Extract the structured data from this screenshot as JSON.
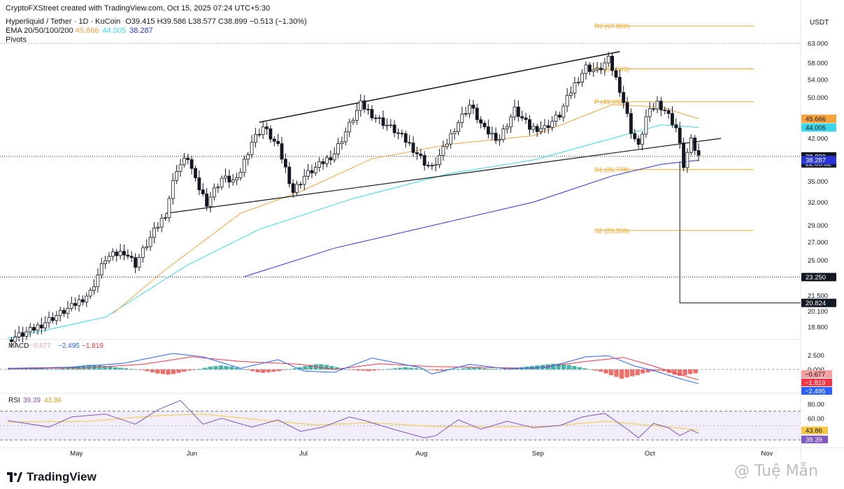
{
  "header": {
    "attribution": "CryptoFXStreet created with TradingView.com, Oct 15, 2025 07:24 UTC+5:30",
    "symbol": "Hyperliquid / Tether · 1D · KuCoin",
    "ohlc": "O39.415 H39.586 L38.577 C38.899 −0.513 (−1.30%)",
    "ema_label": "EMA 20/50/100/200",
    "ema_values": [
      "45.666",
      "44.005",
      "38.287"
    ],
    "pivots_label": "Pivots",
    "currency": "USDT"
  },
  "colors": {
    "up": "#131722",
    "down": "#131722",
    "ema50": "#f7a440",
    "ema100": "#3dd6e8",
    "ema200": "#2a35d6",
    "pivot": "#f5a623",
    "macd": "#2962ff",
    "signal": "#f23645",
    "hist_pos": "#26a69a",
    "hist_neg": "#ef5350",
    "rsi": "#7e57c2",
    "rsi_ma": "#f6c744"
  },
  "chart_data": [
    {
      "type": "candlestick",
      "title": "Hyperliquid / Tether · 1D · KuCoin",
      "price_scale": "log",
      "ylim": [
        17.5,
        70
      ],
      "x_ticks": [
        "May",
        "Jun",
        "Jul",
        "Aug",
        "Sep",
        "Oct",
        "Nov"
      ],
      "y_ticks": [
        "63.000",
        "58.000",
        "54.000",
        "50.000",
        "46.000",
        "42.000",
        "38.899",
        "35.000",
        "32.000",
        "29.000",
        "27.000",
        "25.000",
        "23.250",
        "21.500",
        "20.100",
        "18.800"
      ],
      "price_tags": [
        {
          "value": 45.666,
          "label": "45.666",
          "color": "#f7a440"
        },
        {
          "value": 44.005,
          "label": "44.005",
          "color": "#3dd6e8"
        },
        {
          "value": 38.899,
          "label": "38.899",
          "sub": "22:05:32",
          "color": "#131722"
        },
        {
          "value": 38.287,
          "label": "38.287",
          "color": "#2a35d6"
        },
        {
          "value": 23.25,
          "label": "23.250",
          "color": "#131722"
        },
        {
          "value": 20.824,
          "label": "20.824",
          "color": "#131722"
        }
      ],
      "pivots": [
        {
          "label": "R2 (67.822)",
          "value": 67.822
        },
        {
          "label": "R1 (56.505)",
          "value": 56.505
        },
        {
          "label": "P (49.095)",
          "value": 49.095
        },
        {
          "label": "S1 (36.778)",
          "value": 36.778
        },
        {
          "label": "S2 (28.368)",
          "value": 28.368
        }
      ],
      "channel": {
        "upper": [
          [
            "Jun 20",
            45.0
          ],
          [
            "Sep 24",
            60.8
          ]
        ],
        "lower": [
          [
            "May 26",
            30.5
          ],
          [
            "Oct 21",
            42.0
          ]
        ]
      },
      "anchor_points": [
        [
          "Apr 14",
          17.8
        ],
        [
          "Apr 20",
          18.5
        ],
        [
          "Apr 26",
          19.6
        ],
        [
          "May 1",
          20.5
        ],
        [
          "May 6",
          21.8
        ],
        [
          "May 10",
          25.2
        ],
        [
          "May 15",
          26.0
        ],
        [
          "May 18",
          24.6
        ],
        [
          "May 22",
          27.5
        ],
        [
          "May 26",
          30.5
        ],
        [
          "May 29",
          37.0
        ],
        [
          "Jun 1",
          38.8
        ],
        [
          "Jun 3",
          35.0
        ],
        [
          "Jun 6",
          32.0
        ],
        [
          "Jun 10",
          35.5
        ],
        [
          "Jun 14",
          35.0
        ],
        [
          "Jun 18",
          41.5
        ],
        [
          "Jun 21",
          44.2
        ],
        [
          "Jun 25",
          40.5
        ],
        [
          "Jun 29",
          33.5
        ],
        [
          "Jul 2",
          35.8
        ],
        [
          "Jul 6",
          37.5
        ],
        [
          "Jul 10",
          39.5
        ],
        [
          "Jul 14",
          44.5
        ],
        [
          "Jul 17",
          48.6
        ],
        [
          "Jul 21",
          46.0
        ],
        [
          "Jul 26",
          43.5
        ],
        [
          "Jul 30",
          41.0
        ],
        [
          "Aug 3",
          38.0
        ],
        [
          "Aug 5",
          37.0
        ],
        [
          "Aug 8",
          40.0
        ],
        [
          "Aug 11",
          44.0
        ],
        [
          "Aug 15",
          48.5
        ],
        [
          "Aug 19",
          43.5
        ],
        [
          "Aug 23",
          42.0
        ],
        [
          "Aug 27",
          47.5
        ],
        [
          "Aug 31",
          44.0
        ],
        [
          "Sep 4",
          44.0
        ],
        [
          "Sep 8",
          46.5
        ],
        [
          "Sep 12",
          53.0
        ],
        [
          "Sep 15",
          57.0
        ],
        [
          "Sep 18",
          56.0
        ],
        [
          "Sep 21",
          58.8
        ],
        [
          "Sep 24",
          52.0
        ],
        [
          "Sep 27",
          43.5
        ],
        [
          "Sep 29",
          40.5
        ],
        [
          "Oct 1",
          46.0
        ],
        [
          "Oct 4",
          49.0
        ],
        [
          "Oct 6",
          47.5
        ],
        [
          "Oct 9",
          44.0
        ],
        [
          "Oct 11",
          37.5
        ],
        [
          "Oct 13",
          41.5
        ],
        [
          "Oct 15",
          38.9
        ]
      ],
      "ema50_points": [
        [
          "May 12",
          19.9
        ],
        [
          "May 26",
          24.0
        ],
        [
          "Jun 15",
          30.5
        ],
        [
          "Jul 1",
          33.5
        ],
        [
          "Jul 20",
          38.5
        ],
        [
          "Aug 10",
          41.0
        ],
        [
          "Sep 1",
          42.5
        ],
        [
          "Sep 22",
          48.5
        ],
        [
          "Oct 5",
          48.0
        ],
        [
          "Oct 15",
          45.666
        ]
      ],
      "ema100_points": [
        [
          "Apr 14",
          17.9
        ],
        [
          "May 10",
          19.6
        ],
        [
          "Jun 1",
          24.5
        ],
        [
          "Jun 20",
          28.5
        ],
        [
          "Jul 15",
          32.5
        ],
        [
          "Aug 10",
          36.2
        ],
        [
          "Sep 1",
          38.3
        ],
        [
          "Sep 22",
          42.0
        ],
        [
          "Oct 5",
          44.5
        ],
        [
          "Oct 15",
          44.005
        ]
      ],
      "ema200_points": [
        [
          "Jun 16",
          23.3
        ],
        [
          "Jul 10",
          26.3
        ],
        [
          "Aug 10",
          29.5
        ],
        [
          "Sep 1",
          32.0
        ],
        [
          "Sep 22",
          35.8
        ],
        [
          "Oct 5",
          37.6
        ],
        [
          "Oct 15",
          38.287
        ]
      ],
      "markers": {
        "s1_low_line": 20.824,
        "dotted_level": 23.25,
        "dotted_top": 63.0
      }
    },
    {
      "type": "line",
      "title": "MACD",
      "legend": [
        "MACD",
        "−0.677",
        "−2.495",
        "−1.819"
      ],
      "y_ticks": [
        "2.500",
        "0.000"
      ],
      "price_tags": [
        {
          "label": "−0.677",
          "color": "#f7a0a0"
        },
        {
          "label": "−1.819",
          "color": "#f23645"
        },
        {
          "label": "−2.495",
          "color": "#2962ff"
        }
      ],
      "ylim": [
        -3.8,
        4.5
      ],
      "macd_points": [
        [
          "Apr 14",
          0.2
        ],
        [
          "May 1",
          0.4
        ],
        [
          "May 15",
          1.1
        ],
        [
          "May 28",
          2.8
        ],
        [
          "Jun 5",
          2.2
        ],
        [
          "Jun 15",
          0.2
        ],
        [
          "Jun 25",
          1.7
        ],
        [
          "Jul 2",
          -0.3
        ],
        [
          "Jul 10",
          -0.5
        ],
        [
          "Jul 20",
          2.0
        ],
        [
          "Aug 2",
          0.3
        ],
        [
          "Aug 5",
          -0.8
        ],
        [
          "Aug 15",
          0.9
        ],
        [
          "Aug 25",
          0.1
        ],
        [
          "Sep 5",
          0.4
        ],
        [
          "Sep 15",
          2.2
        ],
        [
          "Sep 21",
          2.4
        ],
        [
          "Sep 28",
          0.6
        ],
        [
          "Oct 3",
          -0.2
        ],
        [
          "Oct 10",
          -1.6
        ],
        [
          "Oct 15",
          -2.495
        ]
      ],
      "signal_points": [
        [
          "Apr 14",
          0.1
        ],
        [
          "May 5",
          0.3
        ],
        [
          "May 20",
          0.9
        ],
        [
          "Jun 2",
          2.2
        ],
        [
          "Jun 15",
          1.4
        ],
        [
          "Jul 1",
          0.9
        ],
        [
          "Jul 10",
          0.0
        ],
        [
          "Jul 22",
          1.0
        ],
        [
          "Aug 5",
          0.5
        ],
        [
          "Aug 15",
          0.4
        ],
        [
          "Sep 1",
          0.2
        ],
        [
          "Sep 15",
          1.4
        ],
        [
          "Sep 25",
          2.1
        ],
        [
          "Oct 3",
          0.6
        ],
        [
          "Oct 10",
          -0.9
        ],
        [
          "Oct 15",
          -1.819
        ]
      ],
      "histogram": [
        0.1,
        0.1,
        0.2,
        0.2,
        0.3,
        0.3,
        0.2,
        0.1,
        0.0,
        0.1,
        0.2,
        0.4,
        0.5,
        0.6,
        0.7,
        0.8,
        0.8,
        0.7,
        0.6,
        0.5,
        0.4,
        0.3,
        0.2,
        0.1,
        0.0,
        -0.1,
        -0.3,
        -0.5,
        -0.7,
        -0.8,
        -0.9,
        -0.8,
        -0.6,
        -0.4,
        -0.2,
        -0.1,
        0.1,
        0.3,
        0.5,
        0.6,
        0.7,
        0.6,
        0.5,
        0.3,
        0.1,
        -0.1,
        -0.3,
        -0.5,
        -0.6,
        -0.5,
        -0.4,
        -0.3,
        -0.1,
        0.0,
        0.2,
        0.4,
        0.6,
        0.8,
        0.9,
        0.9,
        0.8,
        0.6,
        0.4,
        0.2,
        0.0,
        -0.1,
        -0.2,
        -0.2,
        -0.3,
        -0.2,
        -0.1,
        0.0,
        0.1,
        0.2,
        0.3,
        0.4,
        0.3,
        0.2,
        0.1,
        0.0,
        -0.1,
        -0.2,
        -0.2,
        -0.1,
        0.0,
        0.1,
        0.2,
        0.3,
        0.3,
        0.3,
        0.2,
        0.1,
        0.1,
        0.0,
        0.1,
        0.2,
        0.3,
        0.4,
        0.5,
        0.6,
        0.7,
        0.8,
        0.9,
        1.0,
        1.0,
        0.9,
        0.8,
        0.6,
        0.4,
        0.2,
        0.0,
        -0.2,
        -0.4,
        -0.7,
        -1.0,
        -1.3,
        -1.6,
        -1.4,
        -1.2,
        -1.0,
        -0.7,
        -0.5,
        -0.3,
        -0.2,
        -0.3,
        -0.6,
        -0.9,
        -1.1,
        -1.0,
        -0.8,
        -0.677
      ]
    },
    {
      "type": "line",
      "title": "RSI",
      "legend": [
        "RSI",
        "39.39",
        "43.86"
      ],
      "y_ticks": [
        "80.00",
        "60.00"
      ],
      "price_tags": [
        {
          "label": "43.86",
          "color": "#f6c744"
        },
        {
          "label": "39.39",
          "color": "#7e57c2"
        }
      ],
      "band": [
        30,
        70
      ],
      "ylim": [
        25,
        90
      ],
      "rsi_points": [
        [
          "Apr 14",
          57
        ],
        [
          "Apr 25",
          48
        ],
        [
          "May 1",
          62
        ],
        [
          "May 10",
          66
        ],
        [
          "May 18",
          52
        ],
        [
          "May 24",
          72
        ],
        [
          "May 30",
          85
        ],
        [
          "Jun 5",
          52
        ],
        [
          "Jun 10",
          60
        ],
        [
          "Jun 18",
          48
        ],
        [
          "Jun 25",
          58
        ],
        [
          "Jul 1",
          42
        ],
        [
          "Jul 7",
          48
        ],
        [
          "Jul 14",
          62
        ],
        [
          "Jul 18",
          57
        ],
        [
          "Jul 25",
          46
        ],
        [
          "Aug 3",
          33
        ],
        [
          "Aug 6",
          36
        ],
        [
          "Aug 12",
          58
        ],
        [
          "Aug 18",
          45
        ],
        [
          "Aug 25",
          56
        ],
        [
          "Sep 1",
          47
        ],
        [
          "Sep 8",
          50
        ],
        [
          "Sep 14",
          62
        ],
        [
          "Sep 20",
          67
        ],
        [
          "Sep 26",
          45
        ],
        [
          "Sep 29",
          33
        ],
        [
          "Oct 3",
          53
        ],
        [
          "Oct 7",
          47
        ],
        [
          "Oct 10",
          36
        ],
        [
          "Oct 13",
          44
        ],
        [
          "Oct 15",
          39.39
        ]
      ],
      "rsi_ma_points": [
        [
          "Apr 14",
          55
        ],
        [
          "May 5",
          56
        ],
        [
          "May 25",
          64
        ],
        [
          "Jun 5",
          66
        ],
        [
          "Jun 20",
          58
        ],
        [
          "Jul 5",
          51
        ],
        [
          "Jul 20",
          54
        ],
        [
          "Aug 5",
          49
        ],
        [
          "Aug 20",
          48
        ],
        [
          "Sep 5",
          49
        ],
        [
          "Sep 20",
          56
        ],
        [
          "Oct 1",
          51
        ],
        [
          "Oct 15",
          43.86
        ]
      ]
    }
  ],
  "footer": {
    "brand": "TradingView",
    "watermark": "@ Tuệ Mẫn"
  }
}
